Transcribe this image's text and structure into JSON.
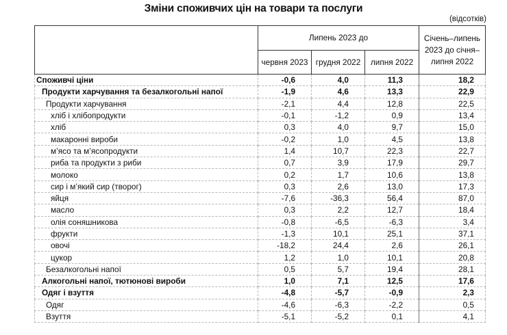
{
  "title": "Зміни споживчих цін на товари та послуги",
  "units": "(відсотків)",
  "header": {
    "group_label": "Липень 2023 до",
    "columns": [
      "червня 2023",
      "грудня 2022",
      "липня 2022"
    ],
    "ytd_label": "Січень–липень 2023 до січня–липня 2022"
  },
  "rows": [
    {
      "label": "Споживчі ціни",
      "level": 0,
      "bold": true,
      "values": [
        "-0,6",
        "4,0",
        "11,3",
        "18,2"
      ]
    },
    {
      "label": "Продукти харчування та безалкогольні напої",
      "level": 1,
      "bold": true,
      "values": [
        "-1,9",
        "4,6",
        "13,3",
        "22,9"
      ]
    },
    {
      "label": "Продукти харчування",
      "level": 2,
      "bold": false,
      "values": [
        "-2,1",
        "4,4",
        "12,8",
        "22,5"
      ]
    },
    {
      "label": "хліб і хлібопродукти",
      "level": 3,
      "bold": false,
      "values": [
        "-0,1",
        "-1,2",
        "0,9",
        "13,4"
      ]
    },
    {
      "label": "хліб",
      "level": 3,
      "bold": false,
      "values": [
        "0,3",
        "4,0",
        "9,7",
        "15,0"
      ]
    },
    {
      "label": "макаронні вироби",
      "level": 3,
      "bold": false,
      "values": [
        "-0,2",
        "1,0",
        "4,5",
        "13,8"
      ]
    },
    {
      "label": "м’ясо та м’ясопродукти",
      "level": 3,
      "bold": false,
      "values": [
        "1,4",
        "10,7",
        "22,3",
        "22,7"
      ]
    },
    {
      "label": "риба та продукти з риби",
      "level": 3,
      "bold": false,
      "values": [
        "0,7",
        "3,9",
        "17,9",
        "29,7"
      ]
    },
    {
      "label": "молоко",
      "level": 3,
      "bold": false,
      "values": [
        "0,2",
        "1,7",
        "10,6",
        "13,8"
      ]
    },
    {
      "label": "сир і м’який сир (творог)",
      "level": 3,
      "bold": false,
      "values": [
        "0,3",
        "2,6",
        "13,0",
        "17,3"
      ]
    },
    {
      "label": "яйця",
      "level": 3,
      "bold": false,
      "values": [
        "-7,6",
        "-36,3",
        "56,4",
        "87,0"
      ]
    },
    {
      "label": "масло",
      "level": 3,
      "bold": false,
      "values": [
        "0,3",
        "2,2",
        "12,7",
        "18,4"
      ]
    },
    {
      "label": "олія соняшникова",
      "level": 3,
      "bold": false,
      "values": [
        "-0,8",
        "-6,5",
        "-6,3",
        "3,4"
      ]
    },
    {
      "label": "фрукти",
      "level": 3,
      "bold": false,
      "values": [
        "-1,3",
        "10,1",
        "25,1",
        "37,1"
      ]
    },
    {
      "label": "овочі",
      "level": 3,
      "bold": false,
      "values": [
        "-18,2",
        "24,4",
        "2,6",
        "26,1"
      ]
    },
    {
      "label": "цукор",
      "level": 3,
      "bold": false,
      "values": [
        "1,2",
        "1,0",
        "10,1",
        "20,8"
      ]
    },
    {
      "label": "Безалкогольні напої",
      "level": 2,
      "bold": false,
      "values": [
        "0,5",
        "5,7",
        "19,4",
        "28,1"
      ]
    },
    {
      "label": "Алкогольні напої, тютюнові вироби",
      "level": 1,
      "bold": true,
      "values": [
        "1,0",
        "7,1",
        "12,5",
        "17,6"
      ]
    },
    {
      "label": "Одяг і взуття",
      "level": 1,
      "bold": true,
      "values": [
        "-4,8",
        "-5,7",
        "-0,9",
        "2,3"
      ]
    },
    {
      "label": "Одяг",
      "level": 2,
      "bold": false,
      "values": [
        "-4,6",
        "-6,3",
        "-2,2",
        "0,5"
      ]
    },
    {
      "label": "Взуття",
      "level": 2,
      "bold": false,
      "values": [
        "-5,1",
        "-5,2",
        "0,1",
        "4,1"
      ]
    }
  ]
}
